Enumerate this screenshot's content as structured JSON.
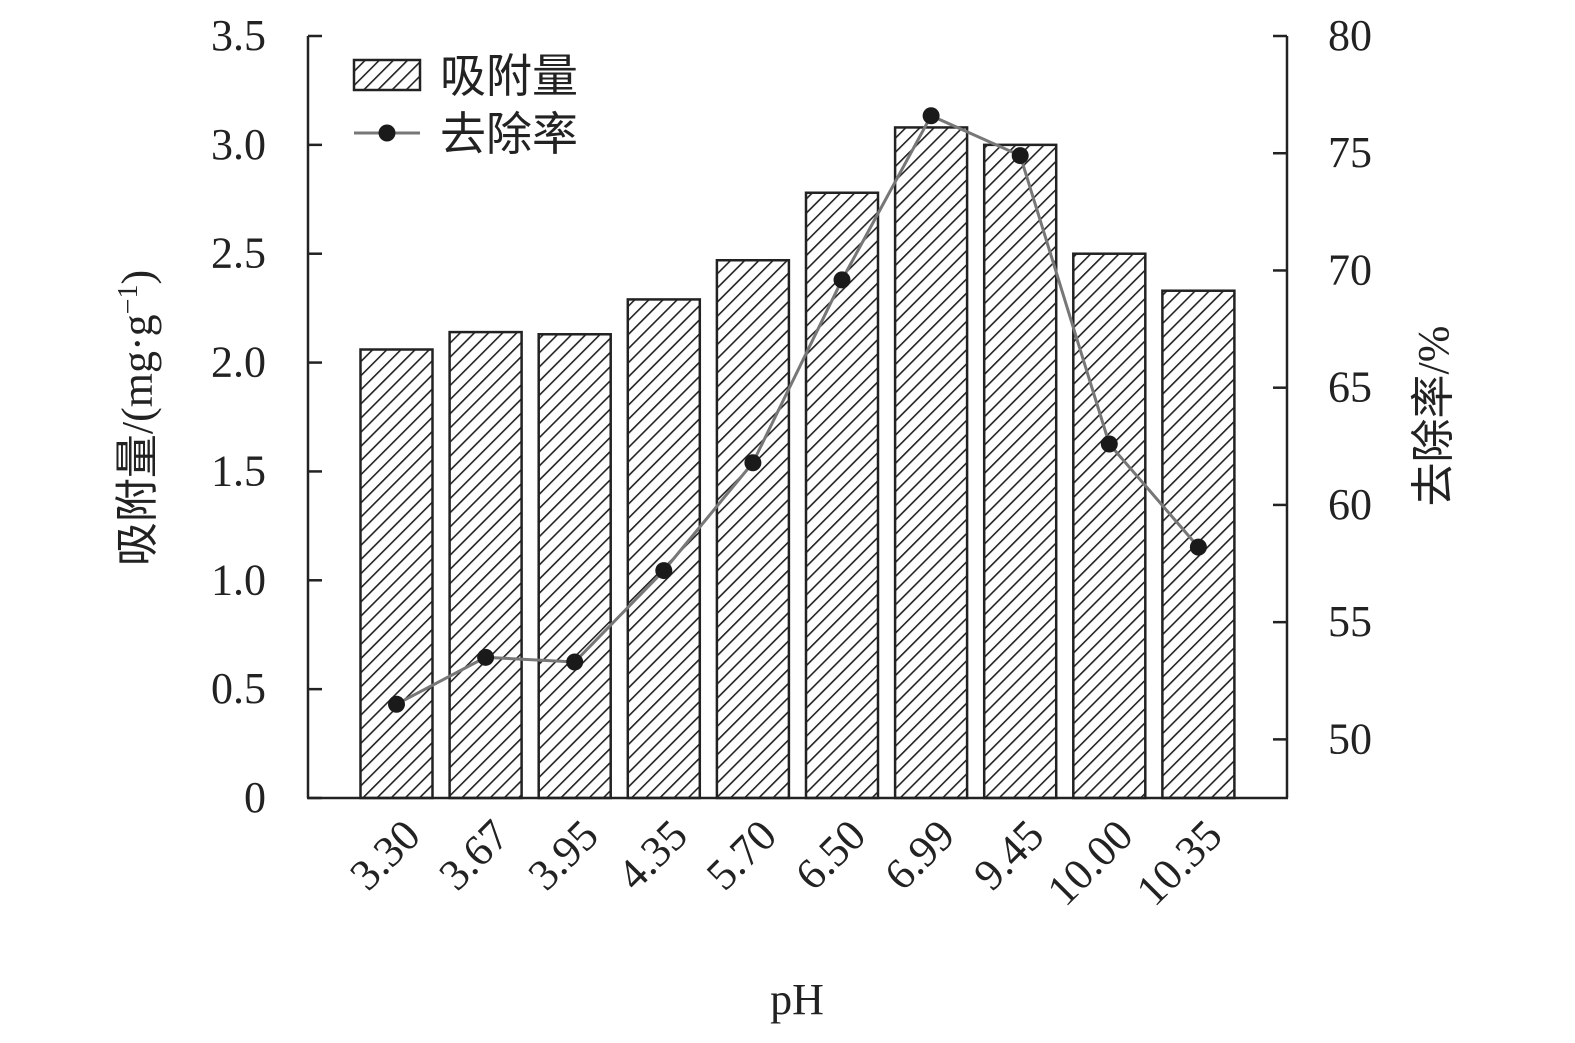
{
  "chart_data": {
    "type": "bar+line",
    "categories": [
      "3.30",
      "3.67",
      "3.95",
      "4.35",
      "5.70",
      "6.50",
      "6.99",
      "9.45",
      "10.00",
      "10.35"
    ],
    "xlabel": "pH",
    "series": [
      {
        "name": "吸附量",
        "type": "bar",
        "axis": "left",
        "values": [
          2.06,
          2.14,
          2.13,
          2.29,
          2.47,
          2.78,
          3.08,
          3.0,
          2.5,
          2.33
        ]
      },
      {
        "name": "去除率",
        "type": "line",
        "axis": "right",
        "values": [
          51.5,
          53.5,
          53.3,
          57.2,
          61.8,
          69.6,
          76.6,
          74.9,
          62.6,
          58.2
        ]
      }
    ],
    "y_left": {
      "label": "吸附量/(mg·g",
      "label_sup": "−1",
      "label_close": ")",
      "lim": [
        0,
        3.5
      ],
      "ticks": [
        0,
        0.5,
        1.0,
        1.5,
        2.0,
        2.5,
        3.0,
        3.5
      ],
      "tick_labels": [
        "0",
        "0.5",
        "1.0",
        "1.5",
        "2.0",
        "2.5",
        "3.0",
        "3.5"
      ]
    },
    "y_right": {
      "label": "去除率/%",
      "lim": [
        47.5,
        80
      ],
      "ticks": [
        50,
        55,
        60,
        65,
        70,
        75,
        80
      ],
      "tick_labels": [
        "50",
        "55",
        "60",
        "65",
        "70",
        "75",
        "80"
      ]
    },
    "legend": {
      "position": "top-left"
    },
    "grid": false,
    "colors": {
      "bar_edge": "#222222",
      "hatch": "#222222",
      "line": "#777777",
      "marker": "#1a1a1a"
    }
  }
}
